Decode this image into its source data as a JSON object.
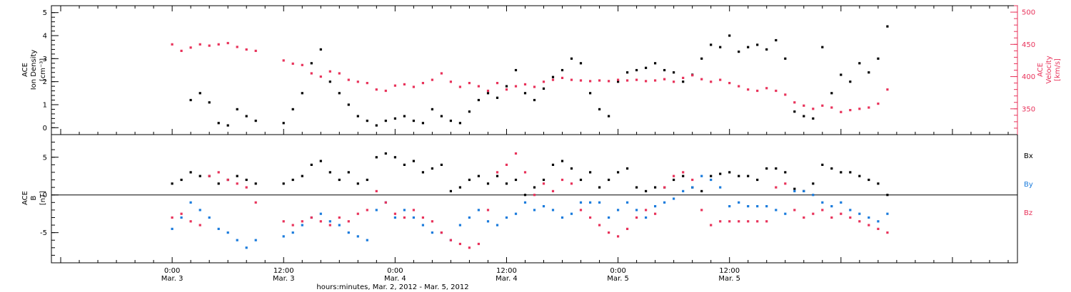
{
  "chart_data": [
    {
      "type": "scatter",
      "panel": "top",
      "ylabel_left": [
        "ACE",
        "Ion Density",
        "[cm⁻³]"
      ],
      "ylabel_right": [
        "ACE",
        "Velocity",
        "[km/s]"
      ],
      "left_ylim": [
        -0.3,
        5.3
      ],
      "left_yticks": [
        "0",
        "1",
        "2",
        "3",
        "4",
        "5"
      ],
      "right_ylim": [
        310,
        510
      ],
      "right_yticks": [
        "350",
        "400",
        "450",
        "500"
      ],
      "series": [
        {
          "color": "#000000",
          "axis": "left",
          "x": [
            2,
            3,
            4,
            5,
            6,
            7,
            8,
            9,
            10,
            11,
            12,
            13,
            14,
            15,
            16,
            17,
            18,
            19,
            20,
            21,
            22,
            23,
            24,
            25,
            26,
            27,
            28,
            29,
            30,
            31,
            32,
            33,
            34,
            35,
            36,
            37,
            38,
            39,
            40,
            41,
            42,
            43,
            44,
            45,
            46,
            47,
            48,
            49,
            50,
            51,
            52,
            53,
            54,
            55,
            56,
            57,
            58,
            59,
            60,
            61,
            62,
            63,
            64,
            65,
            66,
            67,
            68,
            69,
            70,
            71,
            72,
            73,
            74,
            75,
            76,
            77
          ],
          "values": [
            1.2,
            1.5,
            1.1,
            0.2,
            0.1,
            0.8,
            0.5,
            0.3,
            null,
            null,
            0.2,
            0.8,
            1.5,
            2.8,
            3.4,
            2.0,
            1.5,
            1.0,
            0.5,
            0.3,
            0.1,
            0.3,
            0.4,
            0.5,
            0.3,
            0.2,
            0.8,
            0.5,
            0.3,
            0.2,
            0.7,
            1.2,
            1.5,
            1.3,
            1.8,
            2.5,
            1.5,
            1.2,
            1.7,
            2.2,
            2.5,
            3.0,
            2.8,
            1.5,
            0.8,
            0.5,
            2.0,
            2.4,
            2.5,
            2.6,
            2.8,
            2.5,
            2.4,
            2.0,
            2.3,
            3.0,
            3.6,
            3.5,
            4.0,
            3.3,
            3.5,
            3.6,
            3.4,
            3.8,
            3.0,
            0.7,
            0.5,
            0.4,
            3.5,
            1.5,
            2.3,
            2.0,
            2.8,
            2.4,
            3.0,
            4.4
          ]
        },
        {
          "color": "#e8325a",
          "axis": "right",
          "x": [
            0,
            1,
            2,
            3,
            4,
            5,
            6,
            7,
            8,
            9,
            10,
            11,
            12,
            13,
            14,
            15,
            16,
            17,
            18,
            19,
            20,
            21,
            22,
            23,
            24,
            25,
            26,
            27,
            28,
            29,
            30,
            31,
            32,
            33,
            34,
            35,
            36,
            37,
            38,
            39,
            40,
            41,
            42,
            43,
            44,
            45,
            46,
            47,
            48,
            49,
            50,
            51,
            52,
            53,
            54,
            55,
            56,
            57,
            58,
            59,
            60,
            61,
            62,
            63,
            64,
            65,
            66,
            67,
            68,
            69,
            70,
            71,
            72,
            73,
            74,
            75,
            76,
            77
          ],
          "values": [
            450,
            440,
            445,
            450,
            448,
            450,
            452,
            446,
            442,
            440,
            null,
            null,
            425,
            420,
            418,
            405,
            400,
            408,
            405,
            395,
            392,
            390,
            380,
            378,
            386,
            388,
            384,
            390,
            395,
            405,
            392,
            384,
            390,
            385,
            378,
            390,
            380,
            385,
            388,
            384,
            392,
            395,
            398,
            395,
            394,
            393,
            394,
            393,
            395,
            394,
            395,
            393,
            394,
            396,
            392,
            398,
            402,
            396,
            392,
            395,
            390,
            385,
            380,
            378,
            382,
            378,
            372,
            360,
            355,
            350,
            355,
            352,
            345,
            348,
            350,
            352,
            358,
            380
          ]
        }
      ]
    },
    {
      "type": "scatter",
      "panel": "bottom",
      "ylabel": [
        "ACE",
        "B",
        "[nT]"
      ],
      "ylim": [
        -9,
        8
      ],
      "yticks": [
        "-5",
        "0",
        "5"
      ],
      "zero_line": true,
      "legend": [
        "Bx",
        "By",
        "Bz"
      ],
      "legend_placement": "right",
      "series": [
        {
          "name": "Bx",
          "color": "#000000",
          "x": [
            0,
            1,
            2,
            3,
            4,
            5,
            6,
            7,
            8,
            9,
            10,
            11,
            12,
            13,
            14,
            15,
            16,
            17,
            18,
            19,
            20,
            21,
            22,
            23,
            24,
            25,
            26,
            27,
            28,
            29,
            30,
            31,
            32,
            33,
            34,
            35,
            36,
            37,
            38,
            39,
            40,
            41,
            42,
            43,
            44,
            45,
            46,
            47,
            48,
            49,
            50,
            51,
            52,
            53,
            54,
            55,
            56,
            57,
            58,
            59,
            60,
            61,
            62,
            63,
            64,
            65,
            66,
            67,
            68,
            69,
            70,
            71,
            72,
            73,
            74,
            75,
            76,
            77
          ],
          "values": [
            1.5,
            2.0,
            3.0,
            2.5,
            2.5,
            1.5,
            2.0,
            2.5,
            2.0,
            1.5,
            null,
            null,
            1.5,
            2.0,
            2.5,
            4.0,
            4.5,
            3.0,
            2.0,
            3.0,
            1.5,
            2.0,
            5.0,
            5.5,
            5.0,
            4.0,
            4.5,
            3.0,
            3.5,
            4.0,
            0.5,
            1.0,
            2.0,
            2.5,
            1.5,
            2.5,
            1.5,
            2.0,
            0.0,
            1.0,
            2.0,
            4.0,
            4.5,
            3.5,
            2.0,
            3.0,
            1.0,
            2.0,
            3.0,
            3.5,
            1.0,
            0.5,
            1.0,
            1.0,
            2.0,
            2.5,
            1.0,
            0.5,
            2.5,
            2.8,
            3.0,
            2.5,
            2.5,
            2.0,
            3.5,
            3.5,
            3.0,
            0.8,
            0.5,
            1.5,
            4.0,
            3.5,
            3.0,
            3.0,
            2.5,
            2.0,
            1.5,
            0.0
          ]
        },
        {
          "name": "By",
          "color": "#1a7bdc",
          "x": [
            0,
            1,
            2,
            3,
            4,
            5,
            6,
            7,
            8,
            9,
            10,
            11,
            12,
            13,
            14,
            15,
            16,
            17,
            18,
            19,
            20,
            21,
            22,
            23,
            24,
            25,
            26,
            27,
            28,
            29,
            30,
            31,
            32,
            33,
            34,
            35,
            36,
            37,
            38,
            39,
            40,
            41,
            42,
            43,
            44,
            45,
            46,
            47,
            48,
            49,
            50,
            51,
            52,
            53,
            54,
            55,
            56,
            57,
            58,
            59,
            60,
            61,
            62,
            63,
            64,
            65,
            66,
            67,
            68,
            69,
            70,
            71,
            72,
            73,
            74,
            75,
            76,
            77
          ],
          "values": [
            -4.5,
            -3.0,
            -1.0,
            -2.0,
            -3.0,
            -4.5,
            -5.0,
            -6.0,
            -7.0,
            -6.0,
            null,
            null,
            -5.5,
            -5.0,
            -4.0,
            -3.0,
            -2.5,
            -3.5,
            -4.0,
            -5.0,
            -5.5,
            -6.0,
            -2.0,
            -1.0,
            -3.0,
            -2.0,
            -3.0,
            -4.0,
            -5.0,
            -5.0,
            -6.0,
            -4.0,
            -3.0,
            -2.0,
            -3.5,
            -4.0,
            -3.0,
            -2.5,
            -1.0,
            -2.0,
            -1.5,
            -2.0,
            -3.0,
            -2.5,
            -1.0,
            -1.0,
            -1.0,
            -3.0,
            -2.0,
            -1.0,
            -2.0,
            -3.0,
            -1.5,
            -1.0,
            -0.5,
            0.5,
            1.0,
            2.5,
            2.0,
            1.0,
            -1.5,
            -1.0,
            -1.5,
            -1.5,
            -1.5,
            -2.0,
            -2.5,
            0.5,
            0.5,
            0.0,
            -1.0,
            -1.5,
            -1.0,
            -2.0,
            -2.5,
            -3.0,
            -3.5,
            -2.5
          ]
        },
        {
          "name": "Bz",
          "color": "#e8325a",
          "x": [
            0,
            1,
            2,
            3,
            4,
            5,
            6,
            7,
            8,
            9,
            10,
            11,
            12,
            13,
            14,
            15,
            16,
            17,
            18,
            19,
            20,
            21,
            22,
            23,
            24,
            25,
            26,
            27,
            28,
            29,
            30,
            31,
            32,
            33,
            34,
            35,
            36,
            37,
            38,
            39,
            40,
            41,
            42,
            43,
            44,
            45,
            46,
            47,
            48,
            49,
            50,
            51,
            52,
            53,
            54,
            55,
            56,
            57,
            58,
            59,
            60,
            61,
            62,
            63,
            64,
            65,
            66,
            67,
            68,
            69,
            70,
            71,
            72,
            73,
            74,
            75,
            76,
            77
          ],
          "values": [
            -3.0,
            -2.5,
            -3.5,
            -4.0,
            2.5,
            3.0,
            2.0,
            1.5,
            1.0,
            -1.0,
            null,
            null,
            -3.5,
            -4.0,
            -3.5,
            -3.0,
            -3.5,
            -4.0,
            -3.0,
            -3.5,
            -2.5,
            -2.0,
            0.5,
            -1.0,
            -2.5,
            -3.0,
            -2.0,
            -3.0,
            -3.5,
            -5.0,
            -6.0,
            -6.5,
            -7.0,
            -6.5,
            -2.0,
            3.0,
            4.0,
            5.5,
            3.0,
            0.0,
            1.5,
            0.5,
            2.0,
            1.5,
            -2.0,
            -3.0,
            -4.0,
            -5.0,
            -5.5,
            -4.5,
            -3.0,
            -2.0,
            -2.5,
            1.0,
            2.5,
            3.0,
            2.0,
            -2.0,
            -4.0,
            -3.5,
            -3.5,
            -3.5,
            -3.5,
            -3.5,
            -3.5,
            1.0,
            1.5,
            -2.0,
            -3.0,
            -2.5,
            -2.0,
            -3.0,
            -2.5,
            -3.0,
            -3.5,
            -4.0,
            -4.5,
            -5.0
          ]
        }
      ]
    }
  ],
  "x_axis": {
    "xlim": [
      -13,
      91
    ],
    "ticks": [
      {
        "x": 0,
        "time": "0:00",
        "date": "Mar. 3"
      },
      {
        "x": 12,
        "time": "12:00",
        "date": "Mar. 3"
      },
      {
        "x": 24,
        "time": "0:00",
        "date": "Mar. 4"
      },
      {
        "x": 36,
        "time": "12:00",
        "date": "Mar. 4"
      },
      {
        "x": 48,
        "time": "0:00",
        "date": "Mar. 5"
      },
      {
        "x": 60,
        "time": "12:00",
        "date": "Mar. 5"
      }
    ],
    "label": "hours:minutes, Mar. 2, 2012 - Mar. 5, 2012"
  }
}
